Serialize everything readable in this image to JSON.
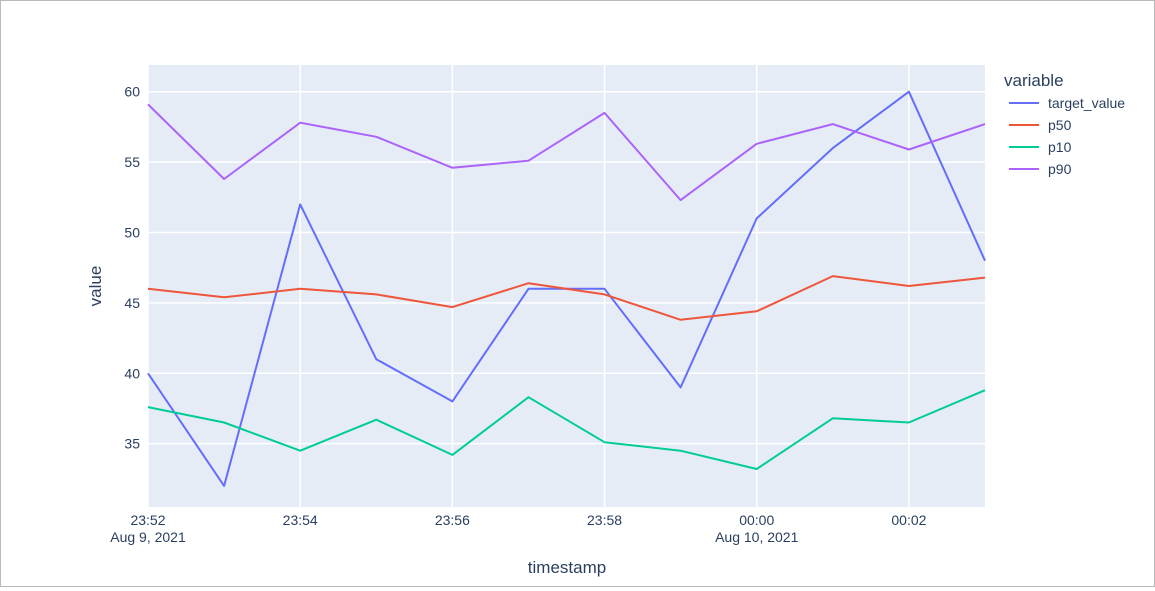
{
  "chart_data": {
    "type": "line",
    "x": [
      "23:52",
      "23:53",
      "23:54",
      "23:55",
      "23:56",
      "23:57",
      "23:58",
      "23:59",
      "00:00",
      "00:01",
      "00:02",
      "00:03"
    ],
    "x_tick_labels": [
      {
        "time": "23:52",
        "date": "Aug 9, 2021"
      },
      {
        "time": "23:54",
        "date": ""
      },
      {
        "time": "23:56",
        "date": ""
      },
      {
        "time": "23:58",
        "date": ""
      },
      {
        "time": "00:00",
        "date": "Aug 10, 2021"
      },
      {
        "time": "00:02",
        "date": ""
      }
    ],
    "y_ticks": [
      35,
      40,
      45,
      50,
      55,
      60
    ],
    "ylim": [
      30.5,
      61.9
    ],
    "xlabel": "timestamp",
    "ylabel": "value",
    "legend_title": "variable",
    "legend_placement": "right",
    "grid": true,
    "plot_background": "#e5ecf6",
    "series": [
      {
        "name": "target_value",
        "color": "#636efa",
        "values": [
          40,
          32,
          52,
          41,
          38,
          46,
          46,
          39,
          51,
          56,
          60,
          48
        ]
      },
      {
        "name": "p50",
        "color": "#ef553b",
        "values": [
          46.0,
          45.4,
          46.0,
          45.6,
          44.7,
          46.4,
          45.6,
          43.8,
          44.4,
          46.9,
          46.2,
          46.8
        ]
      },
      {
        "name": "p10",
        "color": "#00cc96",
        "values": [
          37.6,
          36.5,
          34.5,
          36.7,
          34.2,
          38.3,
          35.1,
          34.5,
          33.2,
          36.8,
          36.5,
          38.8
        ]
      },
      {
        "name": "p90",
        "color": "#ab63fa",
        "values": [
          59.1,
          53.8,
          57.8,
          56.8,
          54.6,
          55.1,
          58.5,
          52.3,
          56.3,
          57.7,
          55.9,
          57.7
        ]
      }
    ]
  }
}
